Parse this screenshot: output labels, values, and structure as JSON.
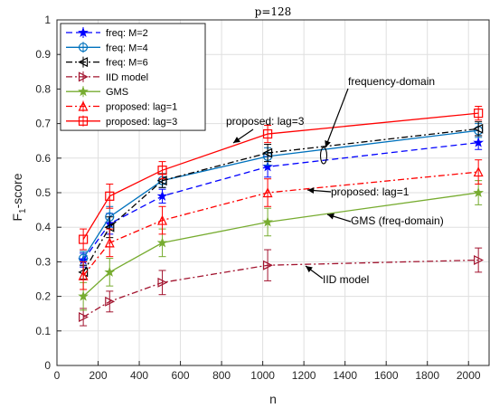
{
  "chart_data": {
    "type": "line",
    "title": "p=128",
    "xlabel": "n",
    "ylabel_main": "F",
    "ylabel_sub": "1",
    "ylabel_rest": "-score",
    "xlim": [
      0,
      2100
    ],
    "ylim": [
      0,
      1
    ],
    "xticks": [
      0,
      200,
      400,
      600,
      800,
      1000,
      1200,
      1400,
      1600,
      1800,
      2000
    ],
    "yticks": [
      0,
      0.1,
      0.2,
      0.3,
      0.4,
      0.5,
      0.6,
      0.7,
      0.8,
      0.9,
      1
    ],
    "grid": true,
    "legend_position": "top-left",
    "x": [
      128,
      256,
      512,
      1024,
      2048
    ],
    "series": [
      {
        "name": "freq: M=2",
        "color": "#0000ff",
        "dash": "7,4",
        "marker": "star",
        "values": [
          0.305,
          0.41,
          0.49,
          0.575,
          0.645
        ],
        "err": [
          0.02,
          0.03,
          0.02,
          0.03,
          0.02
        ]
      },
      {
        "name": "freq: M=4",
        "color": "#0072bd",
        "dash": "",
        "marker": "circle",
        "values": [
          0.31,
          0.43,
          0.535,
          0.605,
          0.68
        ],
        "err": [
          0.02,
          0.03,
          0.02,
          0.025,
          0.02
        ]
      },
      {
        "name": "freq: M=6",
        "color": "#000000",
        "dash": "7,3,2,3",
        "marker": "triangle-left",
        "values": [
          0.27,
          0.4,
          0.535,
          0.615,
          0.685
        ],
        "err": [
          0.02,
          0.03,
          0.02,
          0.025,
          0.02
        ]
      },
      {
        "name": "IID model",
        "color": "#a2142f",
        "dash": "7,3,2,3",
        "marker": "triangle-right",
        "values": [
          0.14,
          0.185,
          0.24,
          0.29,
          0.305
        ],
        "err": [
          0.025,
          0.03,
          0.035,
          0.045,
          0.035
        ]
      },
      {
        "name": "GMS",
        "color": "#77ac30",
        "dash": "",
        "marker": "star",
        "values": [
          0.2,
          0.27,
          0.355,
          0.415,
          0.5
        ],
        "err": [
          0.04,
          0.04,
          0.04,
          0.04,
          0.035
        ]
      },
      {
        "name": "proposed: lag=1",
        "color": "#ff0000",
        "dash": "7,3,2,3",
        "marker": "triangle-up",
        "values": [
          0.26,
          0.355,
          0.42,
          0.5,
          0.56
        ],
        "err": [
          0.04,
          0.04,
          0.04,
          0.04,
          0.035
        ]
      },
      {
        "name": "proposed: lag=3",
        "color": "#ff0000",
        "dash": "",
        "marker": "square",
        "values": [
          0.365,
          0.49,
          0.565,
          0.67,
          0.73
        ],
        "err": [
          0.03,
          0.035,
          0.025,
          0.025,
          0.02
        ]
      }
    ],
    "annotations": [
      {
        "text": "proposed: lag=3"
      },
      {
        "text": "frequency-domain"
      },
      {
        "text": "proposed: lag=1"
      },
      {
        "text": "GMS (freq-domain)"
      },
      {
        "text": "IID model"
      }
    ]
  }
}
